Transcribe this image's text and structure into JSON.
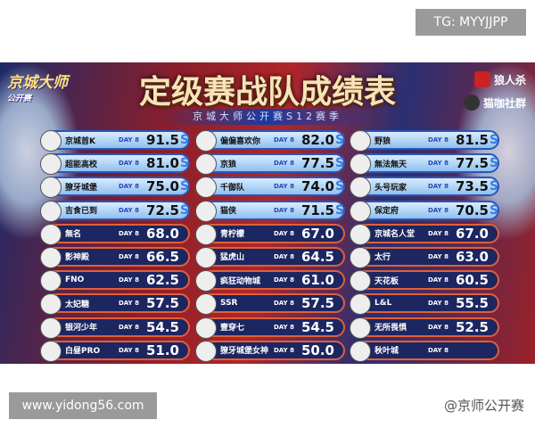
{
  "watermark_top": "TG: MYYJJPP",
  "watermark_bottom": "www.yidong56.com",
  "logo_left": "京城大师",
  "logo_left_sub": "公开赛",
  "title": "定级赛战队成绩表",
  "subtitle": "京城大师公开赛S12赛季",
  "sponsors": [
    "狼人杀",
    "猫咖社群"
  ],
  "weibo": "@京师公开赛",
  "day_label": "DAY 8",
  "top_mark": "S",
  "columns": [
    [
      {
        "name": "京城首K",
        "score": "91.5",
        "tier": "top"
      },
      {
        "name": "超能高校",
        "score": "81.0",
        "tier": "top"
      },
      {
        "name": "獠牙城堡",
        "score": "75.0",
        "tier": "top"
      },
      {
        "name": "吉食已到",
        "score": "72.5",
        "tier": "top"
      },
      {
        "name": "無名",
        "score": "68.0",
        "tier": "low"
      },
      {
        "name": "影神殿",
        "score": "66.5",
        "tier": "low"
      },
      {
        "name": "FNO",
        "score": "62.5",
        "tier": "low"
      },
      {
        "name": "太妃糖",
        "score": "57.5",
        "tier": "low"
      },
      {
        "name": "银河少年",
        "score": "54.5",
        "tier": "low"
      },
      {
        "name": "白昼PRO",
        "score": "51.0",
        "tier": "low"
      }
    ],
    [
      {
        "name": "偏偏喜欢你",
        "score": "82.0",
        "tier": "top"
      },
      {
        "name": "京狼",
        "score": "77.5",
        "tier": "top"
      },
      {
        "name": "千御队",
        "score": "74.0",
        "tier": "top"
      },
      {
        "name": "猫侠",
        "score": "71.5",
        "tier": "top"
      },
      {
        "name": "青柠檬",
        "score": "67.0",
        "tier": "low"
      },
      {
        "name": "猛虎山",
        "score": "64.5",
        "tier": "low"
      },
      {
        "name": "疯狂动物城",
        "score": "61.0",
        "tier": "low"
      },
      {
        "name": "SSR",
        "score": "57.5",
        "tier": "low"
      },
      {
        "name": "壹穿七",
        "score": "54.5",
        "tier": "low"
      },
      {
        "name": "獠牙城堡女神",
        "score": "50.0",
        "tier": "low"
      }
    ],
    [
      {
        "name": "野狼",
        "score": "81.5",
        "tier": "top"
      },
      {
        "name": "無法無天",
        "score": "77.5",
        "tier": "top"
      },
      {
        "name": "头号玩家",
        "score": "73.5",
        "tier": "top"
      },
      {
        "name": "保定府",
        "score": "70.5",
        "tier": "top"
      },
      {
        "name": "京城名人堂",
        "score": "67.0",
        "tier": "low"
      },
      {
        "name": "太行",
        "score": "63.0",
        "tier": "low"
      },
      {
        "name": "天花板",
        "score": "60.5",
        "tier": "low"
      },
      {
        "name": "L&L",
        "score": "55.5",
        "tier": "low"
      },
      {
        "name": "无所畏惧",
        "score": "52.5",
        "tier": "low"
      },
      {
        "name": "秋叶城",
        "score": "",
        "tier": "low"
      }
    ]
  ]
}
